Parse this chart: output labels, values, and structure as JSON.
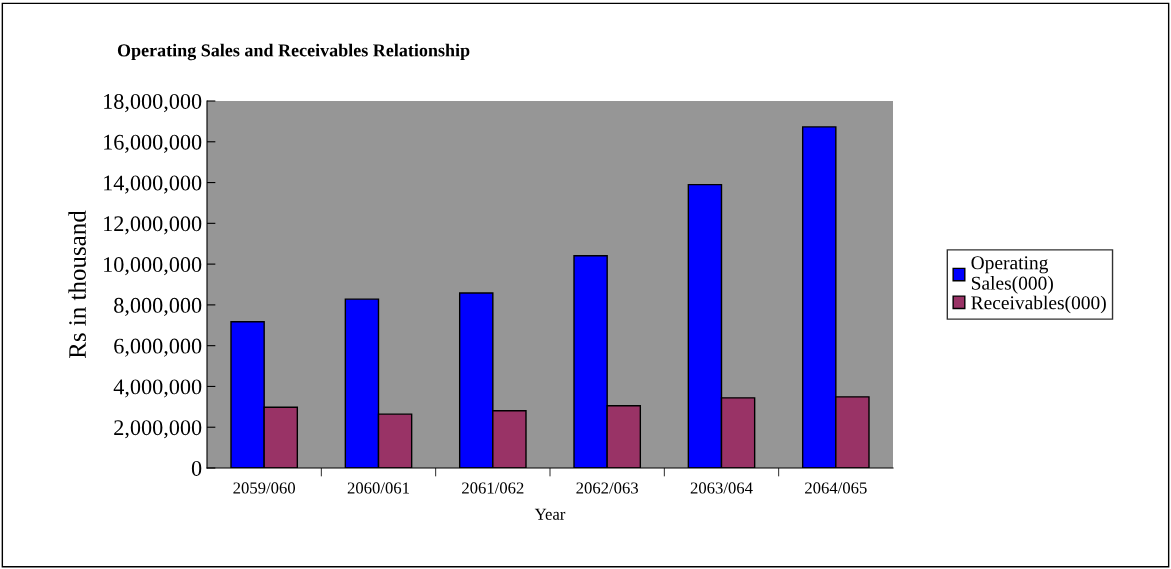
{
  "chart_data": {
    "type": "bar",
    "title": "Operating Sales and Receivables Relationship",
    "xlabel": "Year",
    "ylabel": "Rs in thousand",
    "categories": [
      "2059/060",
      "2060/061",
      "2061/062",
      "2062/063",
      "2063/064",
      "2064/065"
    ],
    "series": [
      {
        "name": "Operating\nSales(000)",
        "color": "#0000ff",
        "values": [
          7170000,
          8280000,
          8580000,
          10410000,
          13900000,
          16730000
        ]
      },
      {
        "name": "Receivables(000)",
        "color": "#993366",
        "values": [
          2980000,
          2640000,
          2810000,
          3050000,
          3440000,
          3490000
        ]
      }
    ],
    "ylim": [
      0,
      18000000
    ],
    "yticks": [
      {
        "value": 0,
        "label": "0"
      },
      {
        "value": 2000000,
        "label": "2,000,000"
      },
      {
        "value": 4000000,
        "label": "4,000,000"
      },
      {
        "value": 6000000,
        "label": "6,000,000"
      },
      {
        "value": 8000000,
        "label": "8,000,000"
      },
      {
        "value": 10000000,
        "label": "10,000,000"
      },
      {
        "value": 12000000,
        "label": "12,000,000"
      },
      {
        "value": 14000000,
        "label": "14,000,000"
      },
      {
        "value": 16000000,
        "label": "16,000,000"
      },
      {
        "value": 18000000,
        "label": "18,000,000"
      }
    ],
    "grid": false,
    "legend": "right"
  }
}
